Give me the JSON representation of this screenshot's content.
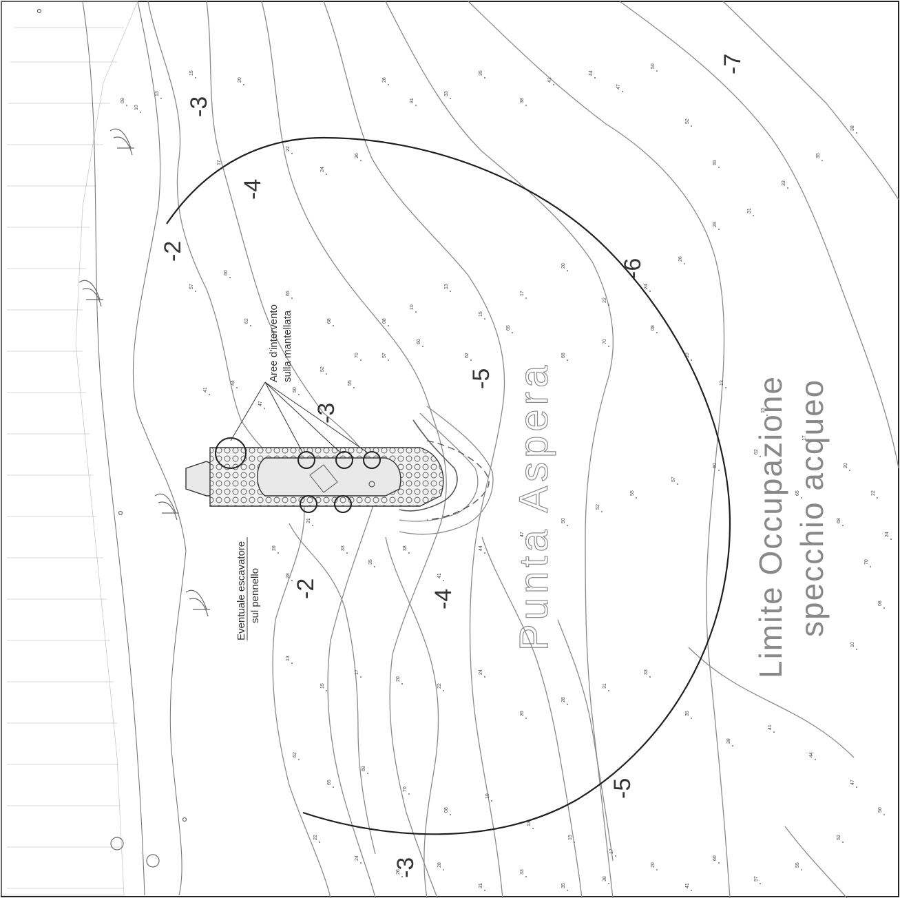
{
  "map": {
    "place_name": "Punta Aspera",
    "limit_label_line1": "Limite Occupazione",
    "limit_label_line2": "specchio acqueo",
    "notes": {
      "intervention_line1": "Aree d'intervento",
      "intervention_line2": "sulla mantellata",
      "excavator_line1": "Eventuale escavatore",
      "excavator_line2": "sul pennello"
    },
    "contour_labels": [
      "-2",
      "-3",
      "-4",
      "-2",
      "-3",
      "-4",
      "-5",
      "-6",
      "-5",
      "-7",
      "-3"
    ],
    "soundings": [
      "08",
      "10",
      "13",
      "15",
      "17",
      "20",
      "22",
      "24",
      "26",
      "28",
      "31",
      "33",
      "35",
      "38",
      "41",
      "44",
      "47",
      "50",
      "52",
      "55",
      "57",
      "60",
      "62",
      "65",
      "68",
      "70"
    ],
    "colors": {
      "contour": "#8a8a8a",
      "boundary": "#1f1f1f",
      "text": "#333333"
    }
  }
}
